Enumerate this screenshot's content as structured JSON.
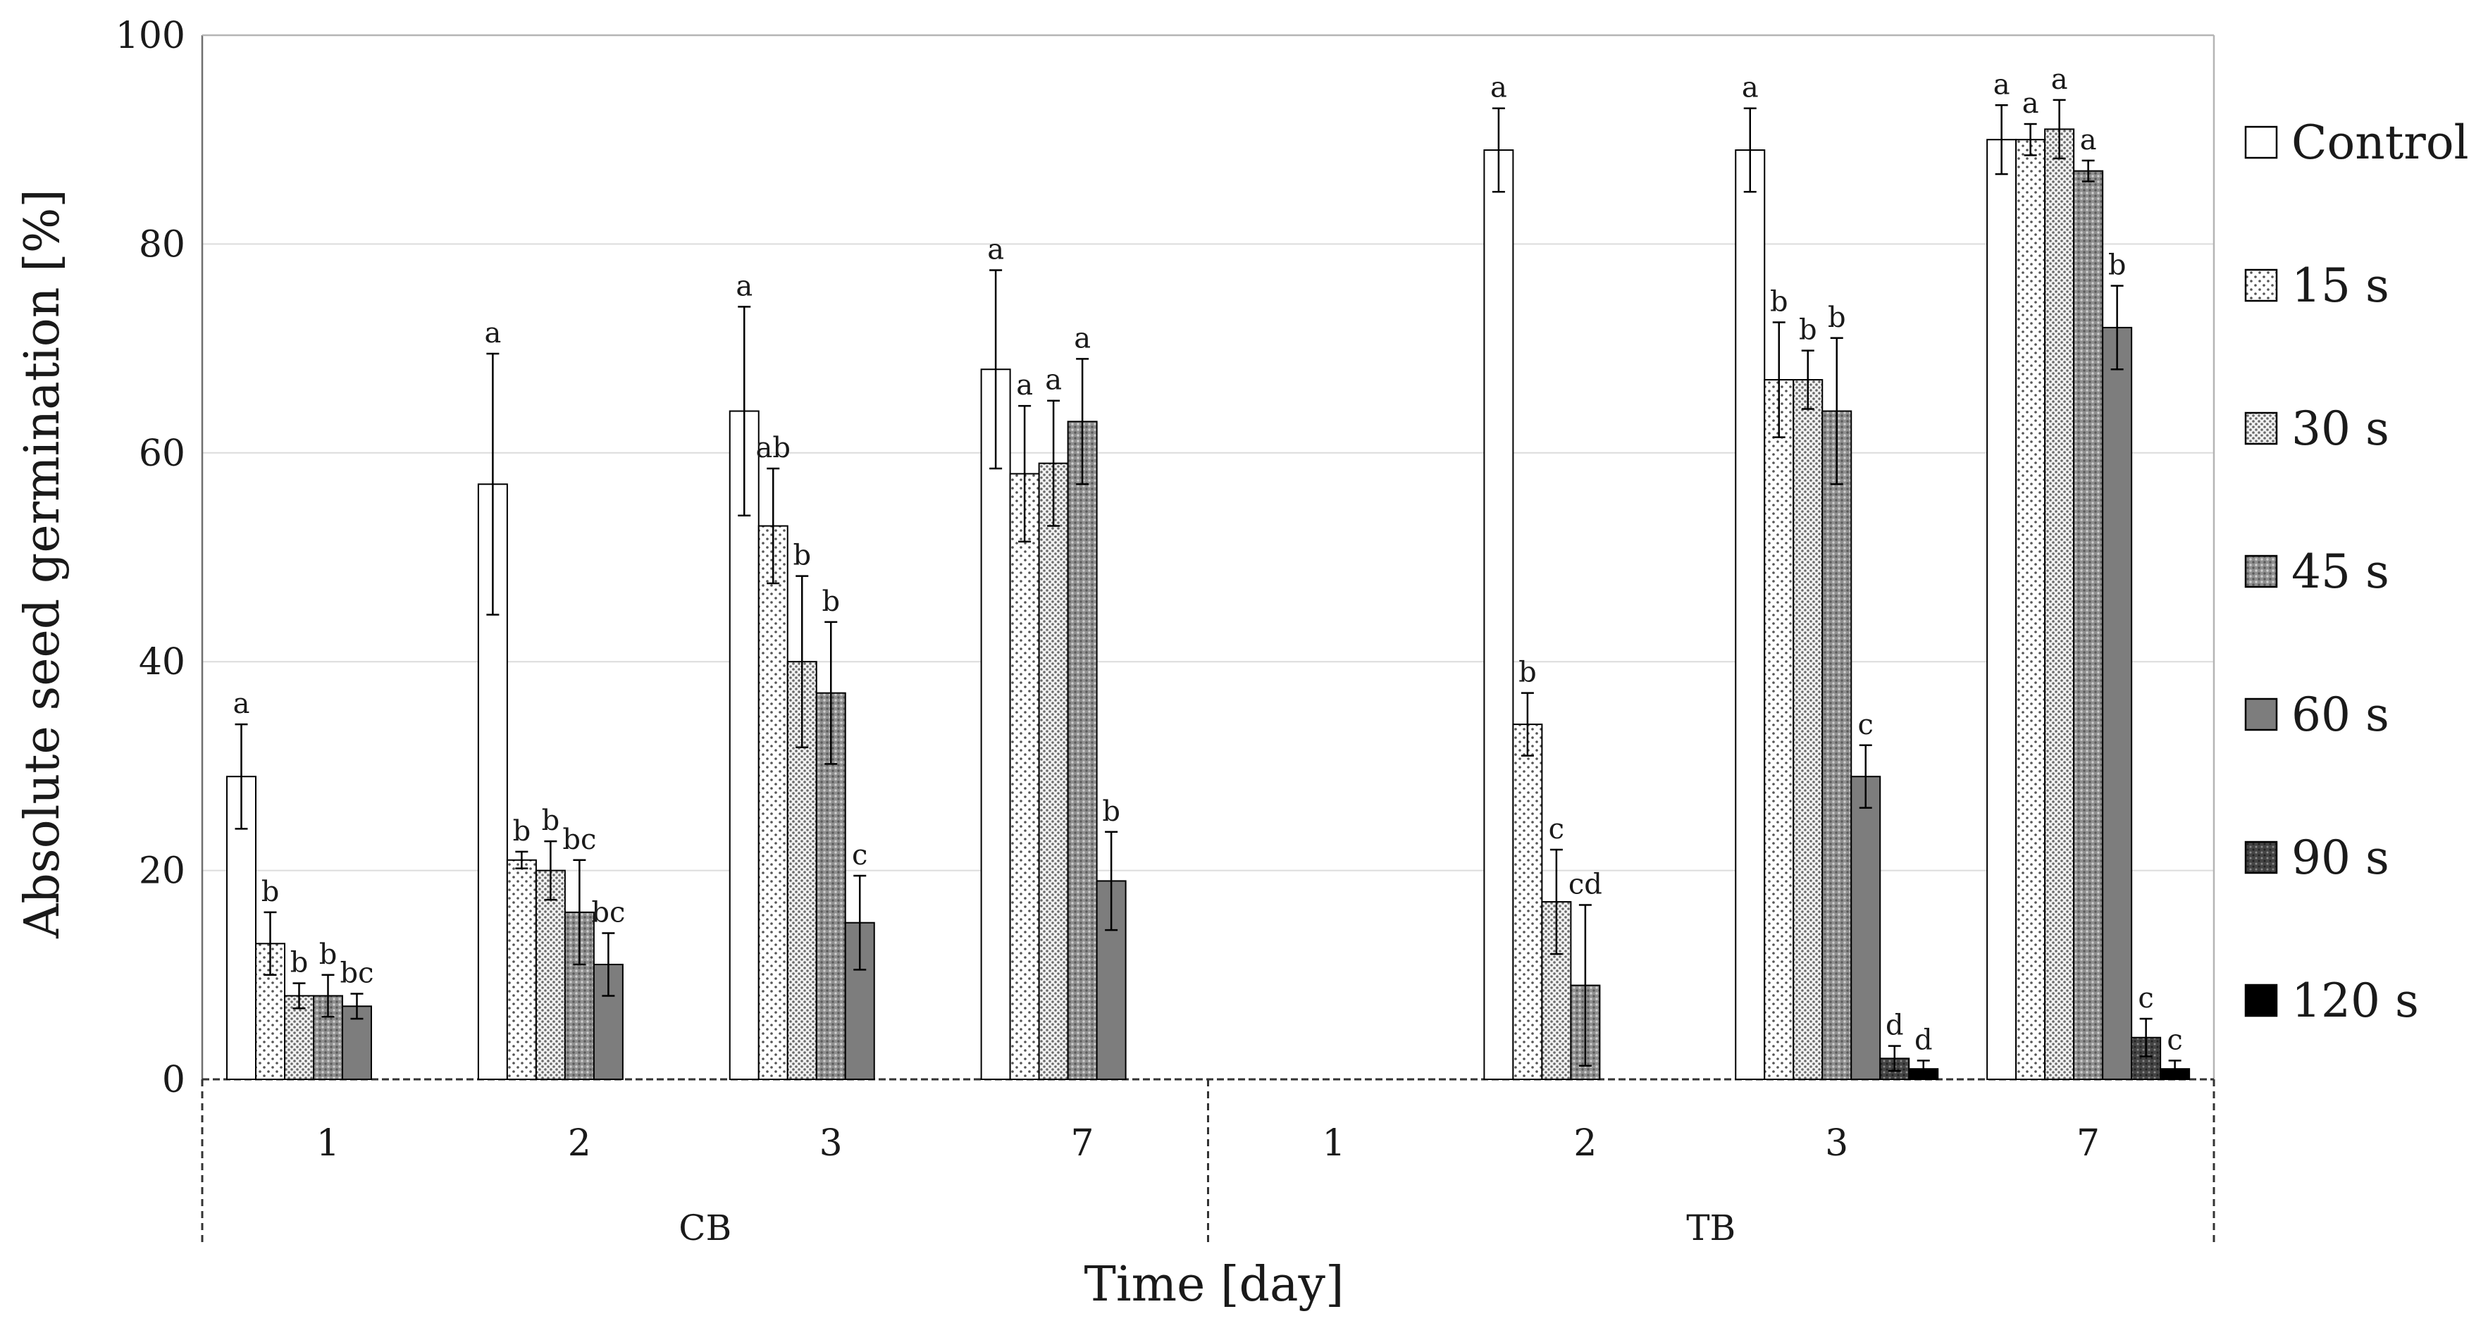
{
  "chart_data": {
    "type": "bar",
    "title": "",
    "ylabel": "Absolute seed germination [%]",
    "xlabel": "Time [day]",
    "ylim": [
      0,
      100
    ],
    "yticks": [
      "0",
      "20",
      "40",
      "60",
      "80",
      "100"
    ],
    "grid": true,
    "legend_position": "right",
    "groups": [
      {
        "name": "CB",
        "days": [
          "1",
          "2",
          "3",
          "7"
        ]
      },
      {
        "name": "TB",
        "days": [
          "1",
          "2",
          "3",
          "7"
        ]
      }
    ],
    "categories": [
      "CB-1",
      "CB-2",
      "CB-3",
      "CB-7",
      "TB-1",
      "TB-2",
      "TB-3",
      "TB-7"
    ],
    "series": [
      {
        "name": "Control",
        "pattern": "white",
        "values": [
          29,
          57,
          64,
          68,
          null,
          89,
          89,
          90
        ],
        "errors": [
          5,
          12.5,
          10,
          9.5,
          null,
          4,
          4,
          3.3
        ],
        "labels": [
          "a",
          "a",
          "a",
          "a",
          null,
          "a",
          "a",
          "a"
        ]
      },
      {
        "name": "15 s",
        "pattern": "dots-sparse",
        "values": [
          13,
          21,
          53,
          58,
          null,
          34,
          67,
          90
        ],
        "errors": [
          3,
          0.8,
          5.5,
          6.5,
          null,
          3,
          5.5,
          1.5
        ],
        "labels": [
          "b",
          "b",
          "ab",
          "a",
          null,
          "b",
          "b",
          "a"
        ]
      },
      {
        "name": "30 s",
        "pattern": "dots-dense",
        "values": [
          8,
          20,
          40,
          59,
          null,
          17,
          67,
          91
        ],
        "errors": [
          1.2,
          2.8,
          8.2,
          6,
          null,
          5,
          2.8,
          2.8
        ],
        "labels": [
          "b",
          "b",
          "b",
          "a",
          null,
          "c",
          "b",
          "a"
        ]
      },
      {
        "name": "45 s",
        "pattern": "grey-crosshatch",
        "values": [
          8,
          16,
          37,
          63,
          null,
          9,
          64,
          87
        ],
        "errors": [
          2,
          5,
          6.8,
          6,
          null,
          7.7,
          7,
          1
        ],
        "labels": [
          "b",
          "bc",
          "b",
          "a",
          null,
          "cd",
          "b",
          "a"
        ]
      },
      {
        "name": "60 s",
        "pattern": "grey-solid",
        "values": [
          7,
          11,
          15,
          19,
          null,
          null,
          29,
          72
        ],
        "errors": [
          1.2,
          3,
          4.5,
          4.7,
          null,
          null,
          3,
          4
        ],
        "labels": [
          "bc",
          "bc",
          "c",
          "b",
          null,
          null,
          "c",
          "b"
        ]
      },
      {
        "name": "90 s",
        "pattern": "dark-dots",
        "values": [
          null,
          null,
          null,
          null,
          null,
          null,
          2,
          4
        ],
        "errors": [
          null,
          null,
          null,
          null,
          null,
          null,
          1.2,
          1.8
        ],
        "labels": [
          null,
          null,
          null,
          null,
          null,
          null,
          "d",
          "c"
        ]
      },
      {
        "name": "120 s",
        "pattern": "black",
        "values": [
          null,
          null,
          null,
          null,
          null,
          null,
          1,
          1
        ],
        "errors": [
          null,
          null,
          null,
          null,
          null,
          null,
          0.8,
          0.8
        ],
        "labels": [
          null,
          null,
          null,
          null,
          null,
          null,
          "d",
          "c"
        ]
      }
    ]
  }
}
